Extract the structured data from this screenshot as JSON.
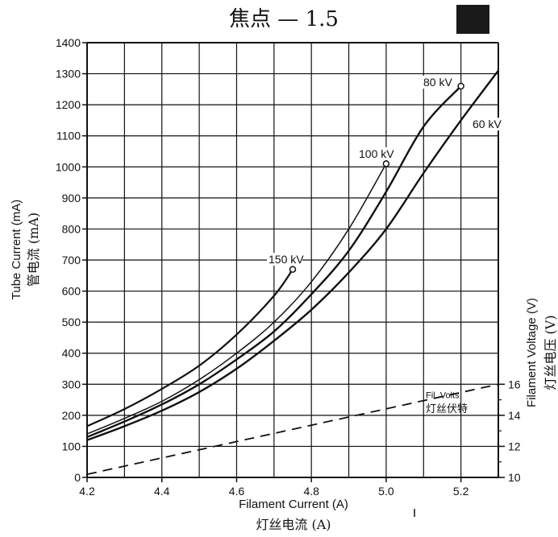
{
  "chart_data": {
    "type": "line",
    "title": "焦点 — 1.5",
    "xlabel": "Filament Current (A)",
    "xlabel_cn": "灯丝电流 (A)",
    "ylabel": "Tube Current (mA)",
    "ylabel_cn": "管电流 (mA)",
    "y2label": "Filament Voltage (V)",
    "y2label_cn": "灯丝电压 (V)",
    "xlim": [
      4.2,
      5.3
    ],
    "ylim": [
      0,
      1400
    ],
    "y2lim": [
      10,
      16
    ],
    "grid": true,
    "x_ticks": [
      "4.2",
      "4.4",
      "4.6",
      "4.8",
      "5.0",
      "5.2"
    ],
    "x_tick_values": [
      4.2,
      4.4,
      4.6,
      4.8,
      5.0,
      5.2
    ],
    "y_ticks": [
      "0",
      "100",
      "200",
      "300",
      "400",
      "500",
      "600",
      "700",
      "800",
      "900",
      "1000",
      "1100",
      "1200",
      "1300",
      "1400"
    ],
    "y_tick_values": [
      0,
      100,
      200,
      300,
      400,
      500,
      600,
      700,
      800,
      900,
      1000,
      1100,
      1200,
      1300,
      1400
    ],
    "y2_ticks": [
      "10",
      "12",
      "14",
      "16"
    ],
    "y2_tick_values": [
      10,
      12,
      14,
      16
    ],
    "series": [
      {
        "name": "150 kV",
        "x": [
          4.2,
          4.3,
          4.4,
          4.5,
          4.6,
          4.7,
          4.75
        ],
        "y": [
          165,
          220,
          285,
          360,
          460,
          585,
          670
        ],
        "endpoint_marker": true
      },
      {
        "name": "100 kV",
        "x": [
          4.2,
          4.3,
          4.4,
          4.5,
          4.6,
          4.7,
          4.8,
          4.9,
          5.0
        ],
        "y": [
          140,
          190,
          245,
          315,
          400,
          500,
          630,
          800,
          1010
        ],
        "endpoint_marker": true
      },
      {
        "name": "80 kV",
        "x": [
          4.2,
          4.3,
          4.4,
          4.5,
          4.6,
          4.7,
          4.8,
          4.9,
          5.0,
          5.1,
          5.2
        ],
        "y": [
          130,
          180,
          235,
          300,
          380,
          470,
          590,
          730,
          920,
          1130,
          1260
        ],
        "endpoint_marker": true
      },
      {
        "name": "60 kV",
        "x": [
          4.2,
          4.3,
          4.4,
          4.5,
          4.6,
          4.7,
          4.8,
          4.9,
          5.0,
          5.1,
          5.2,
          5.3
        ],
        "y": [
          120,
          165,
          215,
          275,
          350,
          440,
          540,
          660,
          800,
          980,
          1150,
          1310
        ],
        "endpoint_marker": false
      },
      {
        "name": "Fil. Volts",
        "name_cn": "灯丝伏特",
        "axis": "y2",
        "dashed": true,
        "x": [
          4.2,
          5.3
        ],
        "y": [
          10.2,
          16.0
        ],
        "endpoint_marker": false
      }
    ]
  },
  "header": {
    "badge_color": "#1a1a1a"
  },
  "colors": {
    "ink": "#111111",
    "grid": "#111111",
    "background": "#ffffff"
  }
}
